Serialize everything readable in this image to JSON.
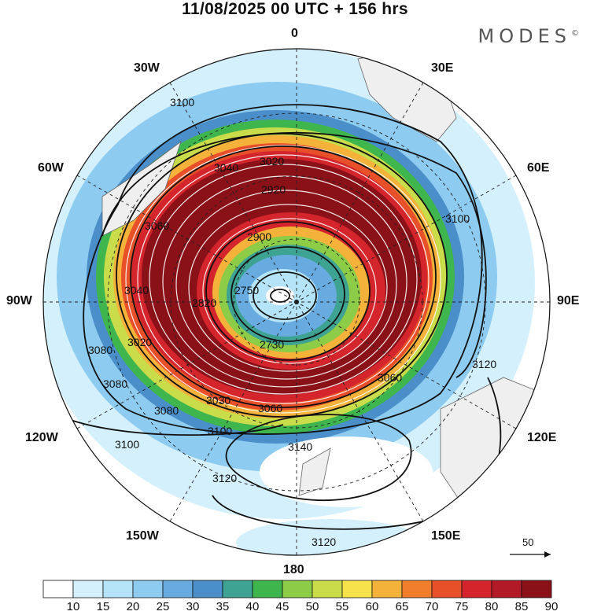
{
  "header": {
    "title": "11/08/2025  00 UTC  + 156 hrs",
    "brand": "MODES",
    "brand_mark": "©"
  },
  "map": {
    "projection": "South polar stereographic",
    "longitude_labels": {
      "top": "0",
      "bottom": "180",
      "left": "90W",
      "right": "90E",
      "upper_left_1": "30W",
      "upper_left_2": "60W",
      "upper_right_1": "30E",
      "upper_right_2": "60E",
      "lower_left_1": "120W",
      "lower_left_2": "150W",
      "lower_right_1": "120E",
      "lower_right_2": "150E"
    },
    "contour_labels": [
      "3100",
      "3040",
      "3020",
      "2920",
      "3060",
      "3100",
      "2900",
      "2750",
      "3040",
      "3080",
      "3080",
      "3020",
      "2730",
      "3080",
      "3100",
      "3120",
      "3140",
      "3100",
      "3120",
      "3120",
      "3060",
      "3030",
      "2820",
      "3060"
    ],
    "wind_scale_label": "50"
  },
  "colorbar": {
    "labels": [
      "10",
      "15",
      "20",
      "25",
      "30",
      "35",
      "40",
      "45",
      "50",
      "55",
      "60",
      "65",
      "70",
      "75",
      "80",
      "85",
      "90"
    ],
    "colors": [
      "#ffffff",
      "#d4f0fc",
      "#b5e3f7",
      "#8ecbf0",
      "#67abe0",
      "#4a8fc9",
      "#3fa393",
      "#3fb54e",
      "#8ccc46",
      "#c9dd4b",
      "#f6e24a",
      "#f4b23a",
      "#ef7d2c",
      "#e8502a",
      "#d4252c",
      "#b31a27",
      "#8b1119"
    ]
  }
}
